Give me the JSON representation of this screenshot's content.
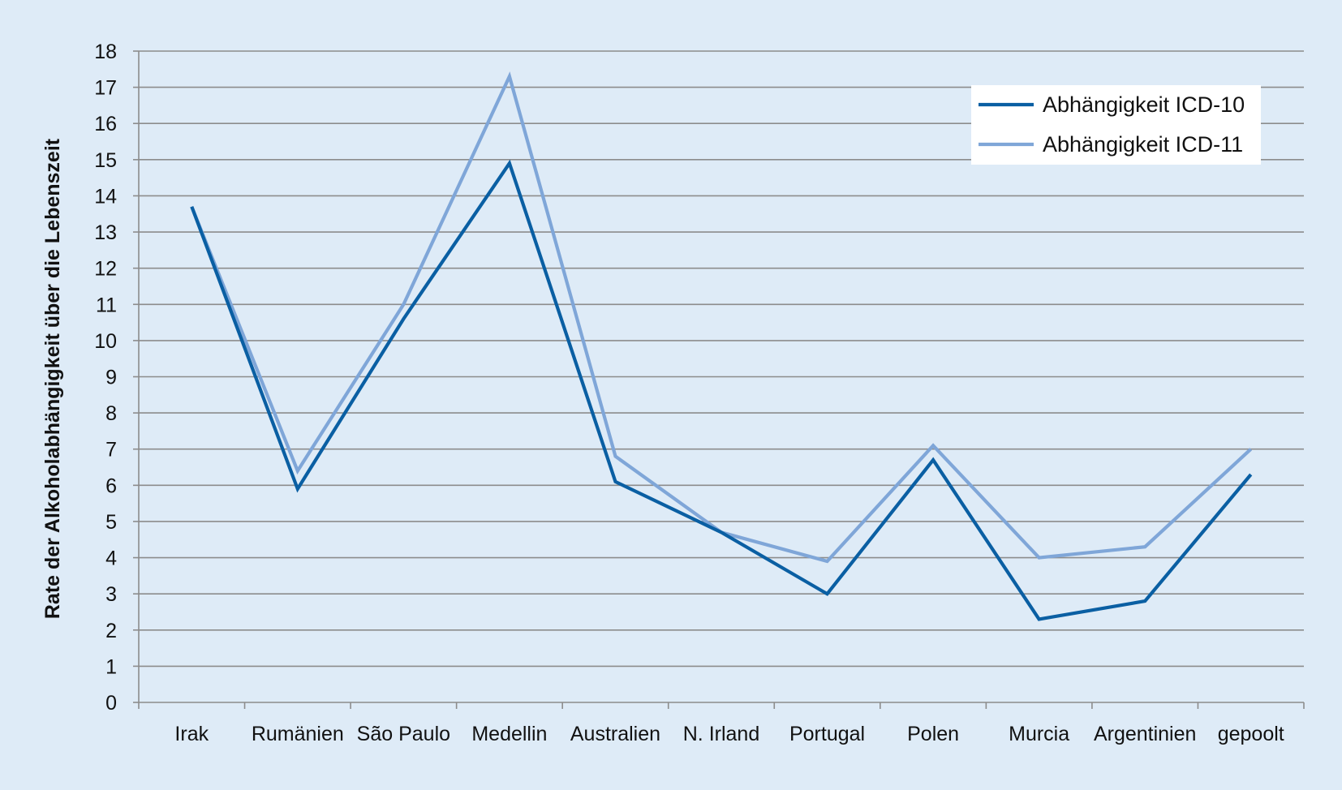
{
  "chart_data": {
    "type": "line",
    "title": "",
    "xlabel": "",
    "ylabel": "Rate der Alkoholabhängigkeit über die Lebenszeit",
    "ylim": [
      0,
      18
    ],
    "yticks": [
      0,
      1,
      2,
      3,
      4,
      5,
      6,
      7,
      8,
      9,
      10,
      11,
      12,
      13,
      14,
      15,
      16,
      17,
      18
    ],
    "grid": true,
    "legend_position": "top-right",
    "categories": [
      "Irak",
      "Rumänien",
      "São Paulo",
      "Medellin",
      "Australien",
      "N. Irland",
      "Portugal",
      "Polen",
      "Murcia",
      "Argentinien",
      "gepoolt"
    ],
    "series": [
      {
        "name": "Abhängigkeit ICD-10",
        "color": "#0a5fa3",
        "values": [
          13.7,
          5.9,
          10.6,
          14.9,
          6.1,
          4.7,
          3.0,
          6.7,
          2.3,
          2.8,
          6.3
        ]
      },
      {
        "name": "Abhängigkeit ICD-11",
        "color": "#7fa6d8",
        "values": [
          13.7,
          6.4,
          11.0,
          17.3,
          6.8,
          4.7,
          3.9,
          7.1,
          4.0,
          4.3,
          7.0
        ]
      }
    ],
    "colors": {
      "background": "#deebf7",
      "gridline": "#8c8c8c",
      "axis": "#8c8c8c",
      "legend_background": "#ffffff"
    }
  }
}
